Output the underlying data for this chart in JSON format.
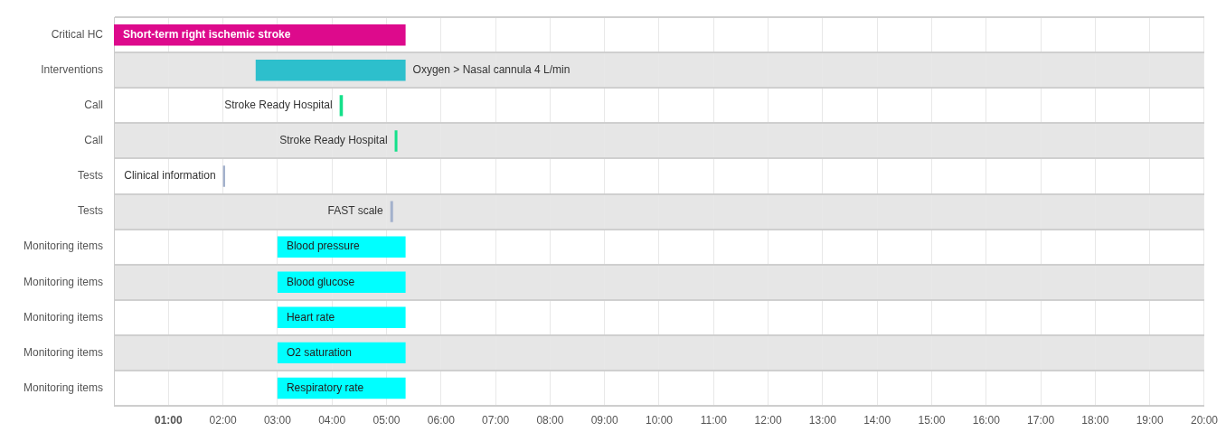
{
  "chart_data": {
    "type": "bar",
    "orientation": "horizontal",
    "grid": true,
    "legend": false,
    "categories": [
      "Critical HC",
      "Interventions",
      "Call",
      "Call",
      "Tests",
      "Tests",
      "Monitoring items",
      "Monitoring items",
      "Monitoring items",
      "Monitoring items",
      "Monitoring items"
    ],
    "base": [
      0,
      2.6,
      4.14,
      5.15,
      2.0,
      5.07,
      3.0,
      3.0,
      3.0,
      3.0,
      3.0
    ],
    "values": [
      5.35,
      2.75,
      0.06,
      0.05,
      0.04,
      0.05,
      2.35,
      2.35,
      2.35,
      2.35,
      2.35
    ],
    "colors": [
      "#dd0a8c",
      "#2dbfcc",
      "#14e08a",
      "#14e08a",
      "#a3b1cc",
      "#a3b1cc",
      "#00ffff",
      "#00ffff",
      "#00ffff",
      "#00ffff",
      "#00ffff"
    ],
    "value_labels": [
      "Short-term right ischemic stroke",
      "Oxygen > Nasal cannula 4 L/min",
      "Stroke Ready Hospital",
      "Stroke Ready Hospital",
      "Clinical information",
      "FAST scale",
      "Blood pressure",
      "Blood glucose",
      "Heart rate",
      "O2 saturation",
      "Respiratory rate"
    ],
    "xlim": [
      0,
      20
    ],
    "xticks": [
      {
        "value": 1,
        "label": "01:00"
      },
      {
        "value": 2,
        "label": "02:00"
      },
      {
        "value": 3,
        "label": "03:00"
      },
      {
        "value": 4,
        "label": "04:00"
      },
      {
        "value": 5,
        "label": "05:00"
      },
      {
        "value": 6,
        "label": "06:00"
      },
      {
        "value": 7,
        "label": "07:00"
      },
      {
        "value": 8,
        "label": "08:00"
      },
      {
        "value": 9,
        "label": "09:00"
      },
      {
        "value": 10,
        "label": "10:00"
      },
      {
        "value": 11,
        "label": "11:00"
      },
      {
        "value": 12,
        "label": "12:00"
      },
      {
        "value": 13,
        "label": "13:00"
      },
      {
        "value": 14,
        "label": "14:00"
      },
      {
        "value": 15,
        "label": "15:00"
      },
      {
        "value": 16,
        "label": "16:00"
      },
      {
        "value": 17,
        "label": "17:00"
      },
      {
        "value": 18,
        "label": "18:00"
      },
      {
        "value": 19,
        "label": "19:00"
      },
      {
        "value": 20,
        "label": "20:00"
      }
    ]
  }
}
